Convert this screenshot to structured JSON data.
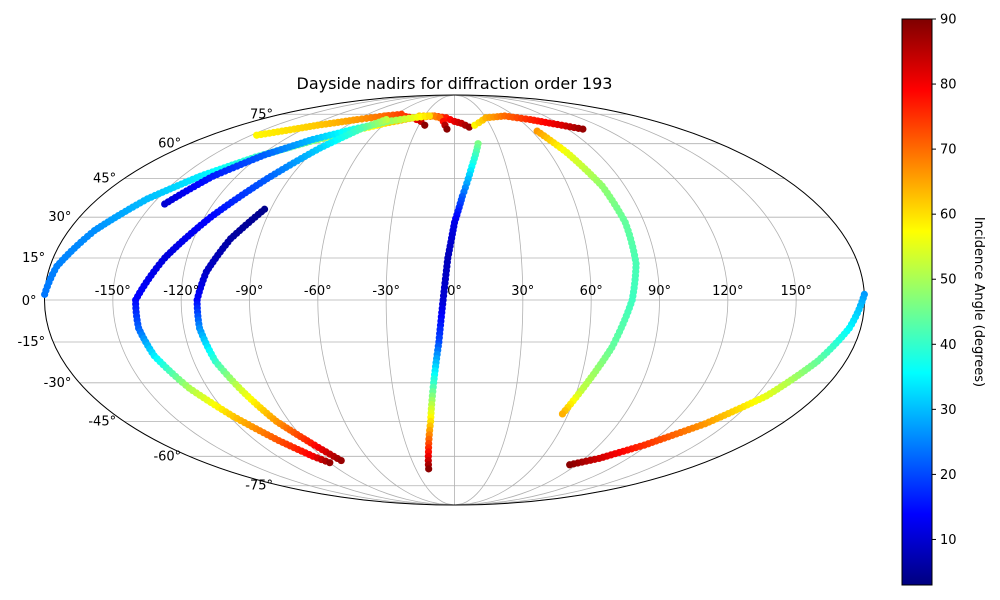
{
  "chart_data": {
    "type": "scatter",
    "projection": "mollweide",
    "title": "Dayside nadirs for diffraction order 193",
    "grid": true,
    "longitude_ticks": [
      "-150°",
      "-120°",
      "-90°",
      "-60°",
      "-30°",
      "0°",
      "30°",
      "60°",
      "90°",
      "120°",
      "150°"
    ],
    "latitude_ticks": [
      "-75°",
      "-60°",
      "-45°",
      "-30°",
      "-15°",
      "0°",
      "15°",
      "30°",
      "45°",
      "60°",
      "75°"
    ],
    "xlabel": "",
    "ylabel": "",
    "color_by": "incidence_angle",
    "colormap": "jet",
    "colorbar": {
      "label": "Incidence Angle (degrees)",
      "range": [
        3,
        90
      ],
      "ticks": [
        "10",
        "20",
        "30",
        "40",
        "50",
        "60",
        "70",
        "80",
        "90"
      ]
    },
    "tracks": [
      {
        "points": [
          {
            "lon": -180,
            "lat": 2,
            "inc": 24
          },
          {
            "lon": -177,
            "lat": 12,
            "inc": 25
          },
          {
            "lon": -168,
            "lat": 25,
            "inc": 26
          },
          {
            "lon": -155,
            "lat": 37,
            "inc": 30
          },
          {
            "lon": -140,
            "lat": 46,
            "inc": 34
          },
          {
            "lon": -122,
            "lat": 54,
            "inc": 40
          },
          {
            "lon": -100,
            "lat": 61,
            "inc": 46
          },
          {
            "lon": -80,
            "lat": 66,
            "inc": 53
          },
          {
            "lon": -60,
            "lat": 70,
            "inc": 60
          },
          {
            "lon": -40,
            "lat": 73,
            "inc": 66
          },
          {
            "lon": -20,
            "lat": 74,
            "inc": 72
          },
          {
            "lon": -8,
            "lat": 73,
            "inc": 77
          },
          {
            "lon": 0,
            "lat": 71,
            "inc": 81
          },
          {
            "lon": 6,
            "lat": 70,
            "inc": 84
          },
          {
            "lon": 12,
            "lat": 68,
            "inc": 88
          }
        ]
      },
      {
        "points": [
          {
            "lon": -68,
            "lat": 74,
            "inc": 74
          },
          {
            "lon": -52,
            "lat": 74,
            "inc": 74
          },
          {
            "lon": -40,
            "lat": 73,
            "inc": 78
          },
          {
            "lon": -30,
            "lat": 71,
            "inc": 84
          },
          {
            "lon": -25,
            "lat": 69,
            "inc": 89
          }
        ]
      },
      {
        "points": [
          {
            "lon": -35,
            "lat": 74,
            "inc": 62
          },
          {
            "lon": -22,
            "lat": 74,
            "inc": 66
          },
          {
            "lon": -14,
            "lat": 73,
            "inc": 70
          },
          {
            "lon": -10,
            "lat": 71,
            "inc": 78
          },
          {
            "lon": -8,
            "lat": 69,
            "inc": 85
          },
          {
            "lon": -6,
            "lat": 67,
            "inc": 89
          }
        ]
      },
      {
        "points": [
          {
            "lon": -146,
            "lat": 64,
            "inc": 58
          },
          {
            "lon": -115,
            "lat": 69,
            "inc": 62
          },
          {
            "lon": -90,
            "lat": 72,
            "inc": 66
          },
          {
            "lon": -70,
            "lat": 74,
            "inc": 70
          },
          {
            "lon": -55,
            "lat": 75,
            "inc": 74
          }
        ]
      },
      {
        "points": [
          {
            "lon": -144,
            "lat": 35,
            "inc": 10
          },
          {
            "lon": -133,
            "lat": 46,
            "inc": 16
          },
          {
            "lon": -118,
            "lat": 55,
            "inc": 22
          },
          {
            "lon": -100,
            "lat": 62,
            "inc": 30
          },
          {
            "lon": -80,
            "lat": 67,
            "inc": 38
          },
          {
            "lon": -60,
            "lat": 71,
            "inc": 48
          },
          {
            "lon": -40,
            "lat": 73,
            "inc": 55
          },
          {
            "lon": -25,
            "lat": 74,
            "inc": 60
          }
        ]
      },
      {
        "points": [
          {
            "lon": -63,
            "lat": 72,
            "inc": 52
          },
          {
            "lon": -75,
            "lat": 67,
            "inc": 42
          },
          {
            "lon": -88,
            "lat": 58,
            "inc": 32
          },
          {
            "lon": -102,
            "lat": 45,
            "inc": 22
          },
          {
            "lon": -117,
            "lat": 30,
            "inc": 14
          },
          {
            "lon": -130,
            "lat": 15,
            "inc": 11
          },
          {
            "lon": -140,
            "lat": 0,
            "inc": 14
          },
          {
            "lon": -140,
            "lat": -10,
            "inc": 22
          },
          {
            "lon": -137,
            "lat": -20,
            "inc": 34
          },
          {
            "lon": -129,
            "lat": -32,
            "inc": 50
          },
          {
            "lon": -118,
            "lat": -43,
            "inc": 62
          },
          {
            "lon": -106,
            "lat": -53,
            "inc": 72
          },
          {
            "lon": -96,
            "lat": -60,
            "inc": 80
          },
          {
            "lon": -90,
            "lat": -63,
            "inc": 88
          }
        ]
      },
      {
        "points": [
          {
            "lon": -93,
            "lat": 33,
            "inc": 4
          },
          {
            "lon": -103,
            "lat": 22,
            "inc": 6
          },
          {
            "lon": -110,
            "lat": 10,
            "inc": 9
          },
          {
            "lon": -113,
            "lat": 0,
            "inc": 14
          },
          {
            "lon": -113,
            "lat": -10,
            "inc": 26
          },
          {
            "lon": -110,
            "lat": -22,
            "inc": 40
          },
          {
            "lon": -104,
            "lat": -33,
            "inc": 54
          },
          {
            "lon": -97,
            "lat": -45,
            "inc": 66
          },
          {
            "lon": -88,
            "lat": -54,
            "inc": 77
          },
          {
            "lon": -80,
            "lat": -62,
            "inc": 88
          }
        ]
      },
      {
        "points": [
          {
            "lon": 16,
            "lat": 60,
            "inc": 46
          },
          {
            "lon": 10,
            "lat": 50,
            "inc": 36
          },
          {
            "lon": 4,
            "lat": 38,
            "inc": 22
          },
          {
            "lon": 0,
            "lat": 28,
            "inc": 12
          },
          {
            "lon": -3,
            "lat": 15,
            "inc": 8
          },
          {
            "lon": -5,
            "lat": 0,
            "inc": 10
          },
          {
            "lon": -7,
            "lat": -15,
            "inc": 20
          },
          {
            "lon": -10,
            "lat": -30,
            "inc": 40
          },
          {
            "lon": -13,
            "lat": -45,
            "inc": 60
          },
          {
            "lon": -17,
            "lat": -58,
            "inc": 78
          },
          {
            "lon": -20,
            "lat": -66,
            "inc": 89
          }
        ]
      },
      {
        "points": [
          {
            "lon": 17,
            "lat": 69,
            "inc": 58
          },
          {
            "lon": 30,
            "lat": 73,
            "inc": 64
          },
          {
            "lon": 50,
            "lat": 74,
            "inc": 70
          },
          {
            "lon": 70,
            "lat": 72,
            "inc": 76
          },
          {
            "lon": 90,
            "lat": 69,
            "inc": 82
          },
          {
            "lon": 102,
            "lat": 67,
            "inc": 88
          }
        ]
      },
      {
        "points": [
          {
            "lon": 64,
            "lat": 66,
            "inc": 66
          },
          {
            "lon": 71,
            "lat": 56,
            "inc": 56
          },
          {
            "lon": 78,
            "lat": 42,
            "inc": 48
          },
          {
            "lon": 81,
            "lat": 28,
            "inc": 44
          },
          {
            "lon": 81,
            "lat": 13,
            "inc": 42
          },
          {
            "lon": 78,
            "lat": 0,
            "inc": 41
          },
          {
            "lon": 71,
            "lat": -17,
            "inc": 44
          },
          {
            "lon": 62,
            "lat": -33,
            "inc": 52
          },
          {
            "lon": 57,
            "lat": -42,
            "inc": 64
          }
        ]
      },
      {
        "points": [
          {
            "lon": 180,
            "lat": 2,
            "inc": 27
          },
          {
            "lon": 175,
            "lat": -10,
            "inc": 35
          },
          {
            "lon": 167,
            "lat": -22,
            "inc": 44
          },
          {
            "lon": 155,
            "lat": -35,
            "inc": 55
          },
          {
            "lon": 138,
            "lat": -46,
            "inc": 66
          },
          {
            "lon": 118,
            "lat": -55,
            "inc": 75
          },
          {
            "lon": 100,
            "lat": -61,
            "inc": 83
          },
          {
            "lon": 85,
            "lat": -64,
            "inc": 89
          }
        ]
      }
    ]
  }
}
